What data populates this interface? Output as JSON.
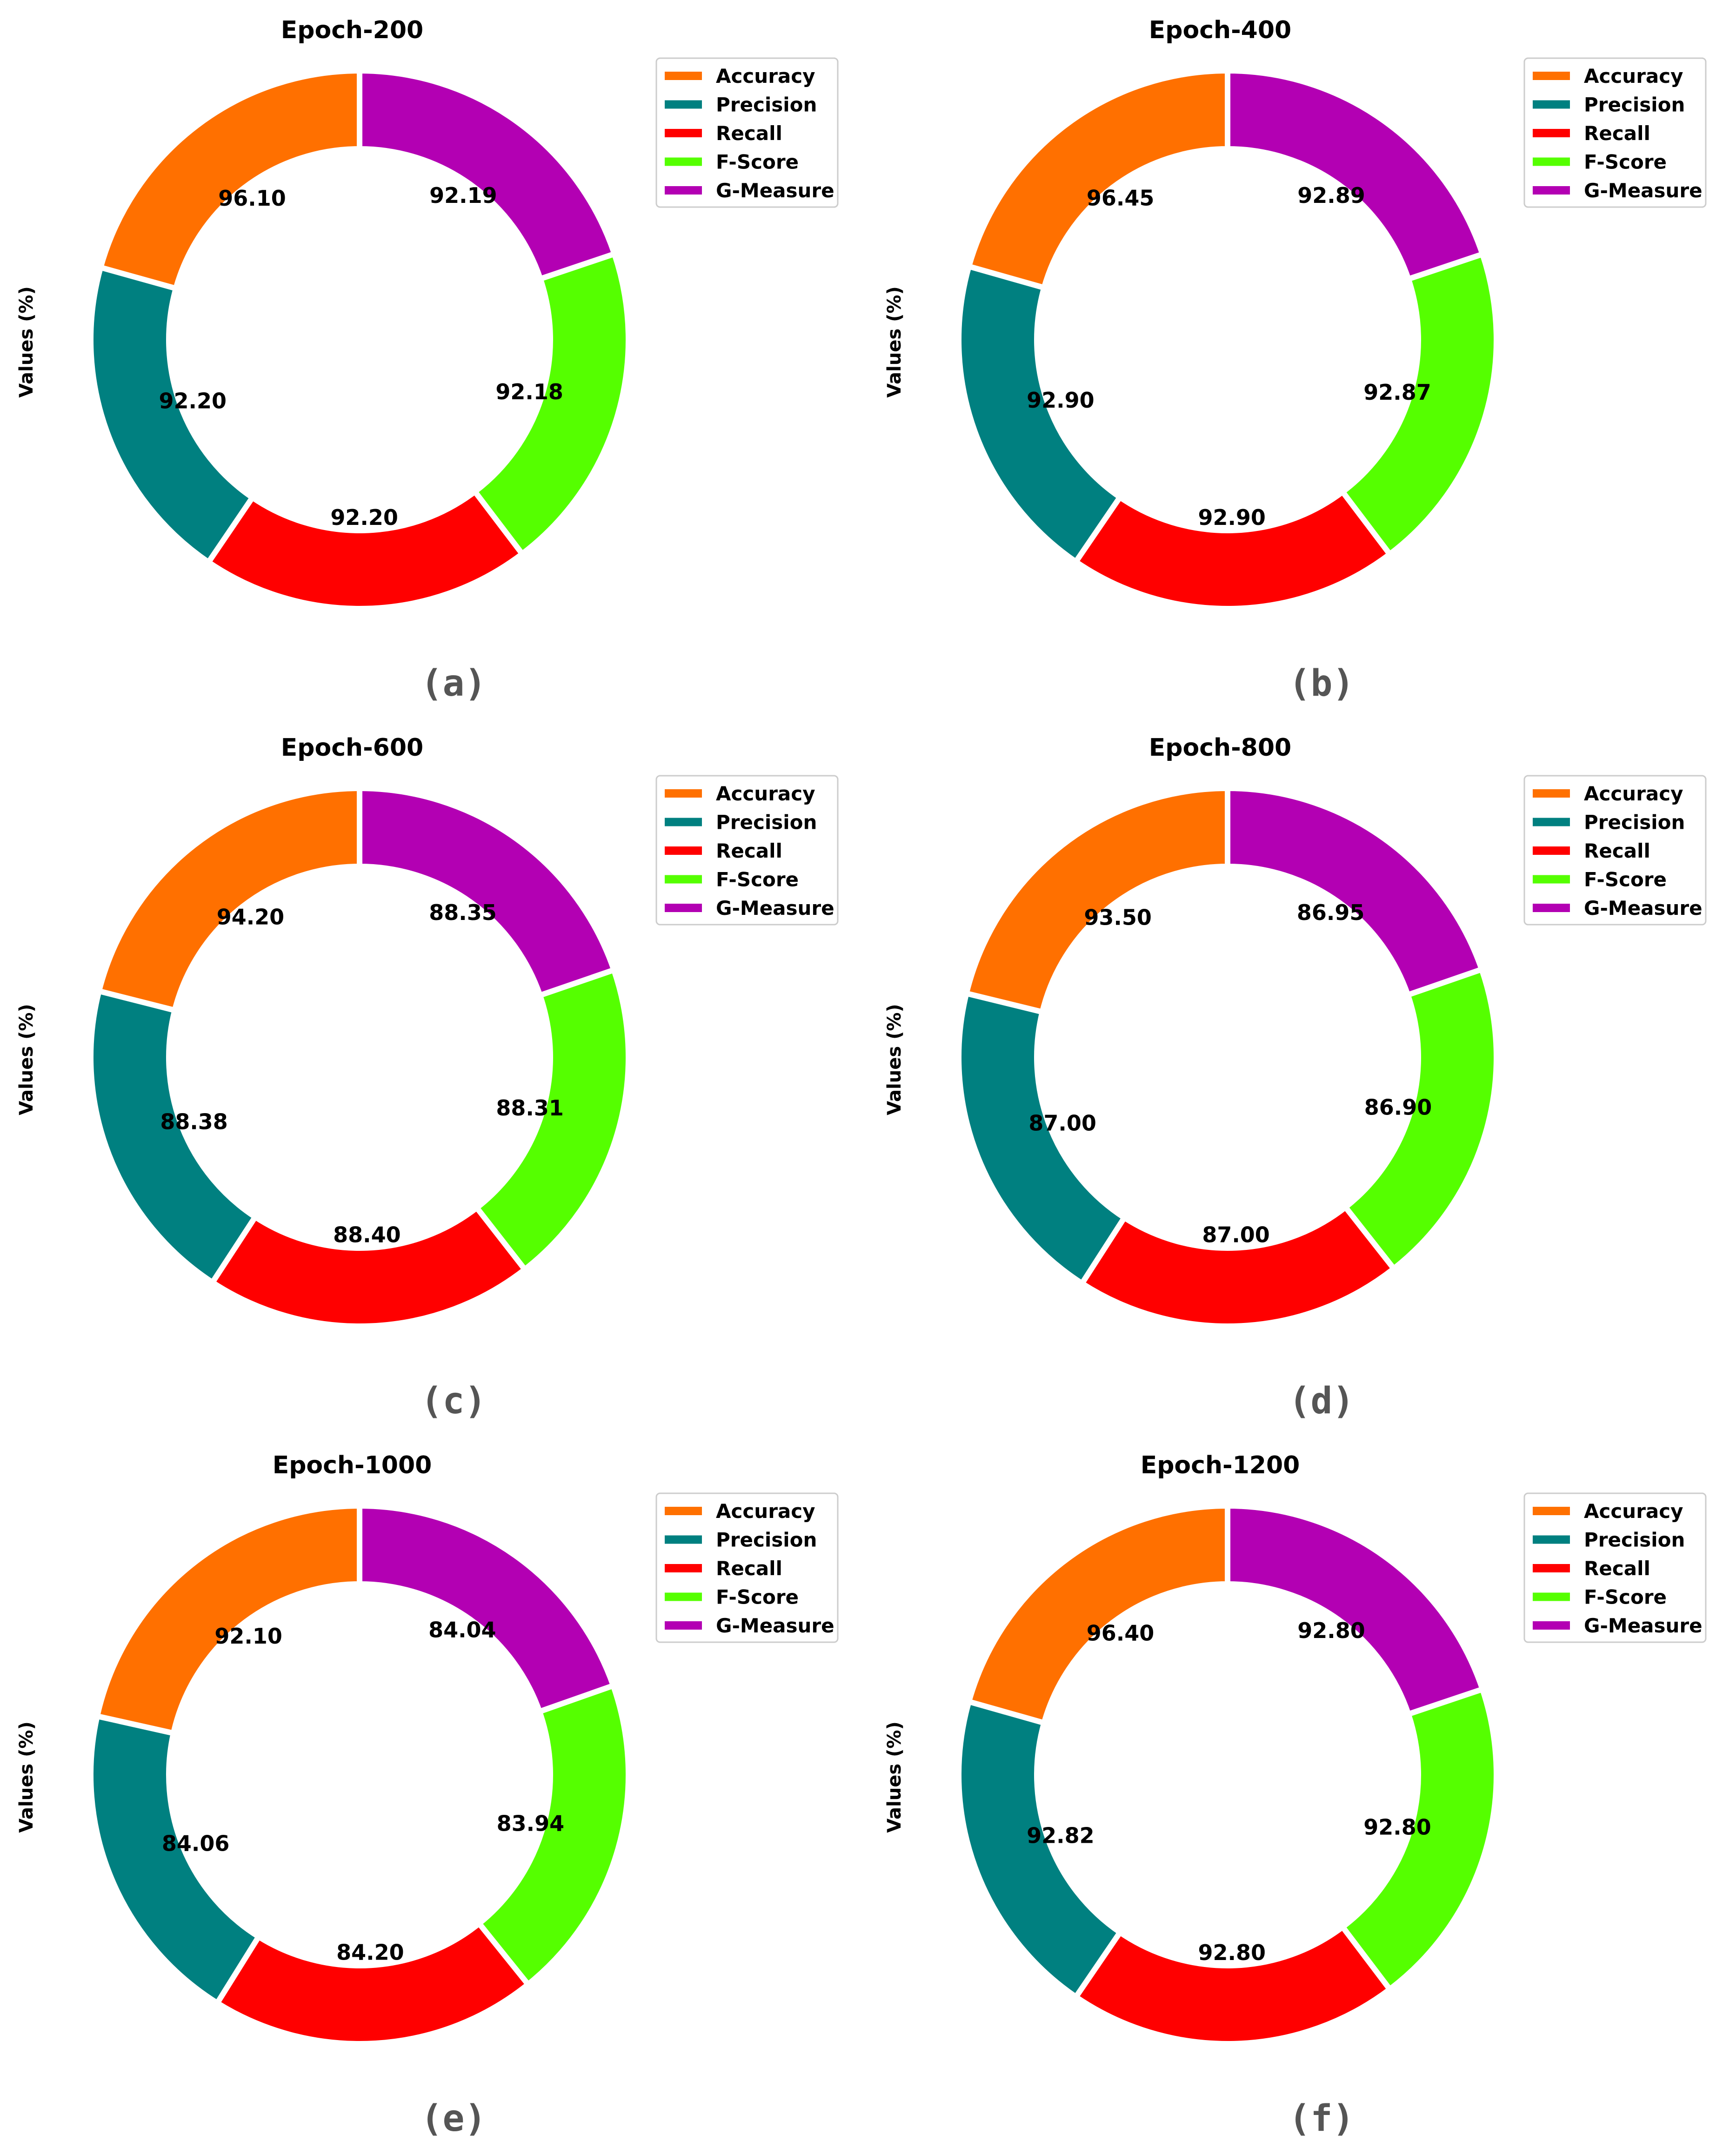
{
  "chart_data": [
    {
      "type": "pie",
      "title": "Epoch-200",
      "ylabel": "Values (%)",
      "sublabel": "(a)",
      "categories": [
        "Accuracy",
        "Precision",
        "Recall",
        "F-Score",
        "G-Measure"
      ],
      "values": [
        96.1,
        92.2,
        92.2,
        92.18,
        92.19
      ],
      "value_labels": [
        "96.10",
        "92.20",
        "92.20",
        "92.18",
        "92.19"
      ]
    },
    {
      "type": "pie",
      "title": "Epoch-400",
      "ylabel": "Values (%)",
      "sublabel": "(b)",
      "categories": [
        "Accuracy",
        "Precision",
        "Recall",
        "F-Score",
        "G-Measure"
      ],
      "values": [
        96.45,
        92.9,
        92.9,
        92.87,
        92.89
      ],
      "value_labels": [
        "96.45",
        "92.90",
        "92.90",
        "92.87",
        "92.89"
      ]
    },
    {
      "type": "pie",
      "title": "Epoch-600",
      "ylabel": "Values (%)",
      "sublabel": "(c)",
      "categories": [
        "Accuracy",
        "Precision",
        "Recall",
        "F-Score",
        "G-Measure"
      ],
      "values": [
        94.2,
        88.38,
        88.4,
        88.31,
        88.35
      ],
      "value_labels": [
        "94.20",
        "88.38",
        "88.40",
        "88.31",
        "88.35"
      ]
    },
    {
      "type": "pie",
      "title": "Epoch-800",
      "ylabel": "Values (%)",
      "sublabel": "(d)",
      "categories": [
        "Accuracy",
        "Precision",
        "Recall",
        "F-Score",
        "G-Measure"
      ],
      "values": [
        93.5,
        87.0,
        87.0,
        86.9,
        86.95
      ],
      "value_labels": [
        "93.50",
        "87.00",
        "87.00",
        "86.90",
        "86.95"
      ]
    },
    {
      "type": "pie",
      "title": "Epoch-1000",
      "ylabel": "Values (%)",
      "sublabel": "(e)",
      "categories": [
        "Accuracy",
        "Precision",
        "Recall",
        "F-Score",
        "G-Measure"
      ],
      "values": [
        92.1,
        84.06,
        84.2,
        83.94,
        84.04
      ],
      "value_labels": [
        "92.10",
        "84.06",
        "84.20",
        "83.94",
        "84.04"
      ]
    },
    {
      "type": "pie",
      "title": "Epoch-1200",
      "ylabel": "Values (%)",
      "sublabel": "(f)",
      "categories": [
        "Accuracy",
        "Precision",
        "Recall",
        "F-Score",
        "G-Measure"
      ],
      "values": [
        96.4,
        92.82,
        92.8,
        92.8,
        92.8
      ],
      "value_labels": [
        "96.40",
        "92.82",
        "92.80",
        "92.80",
        "92.80"
      ]
    }
  ],
  "legend": {
    "placement": "upper-right of each panel",
    "entries": [
      "Accuracy",
      "Precision",
      "Recall",
      "F-Score",
      "G-Measure"
    ]
  },
  "colors": {
    "Accuracy": "#ff7000",
    "Precision": "#008080",
    "Recall": "#ff0000",
    "F-Score": "#55ff00",
    "G-Measure": "#b300b3"
  }
}
